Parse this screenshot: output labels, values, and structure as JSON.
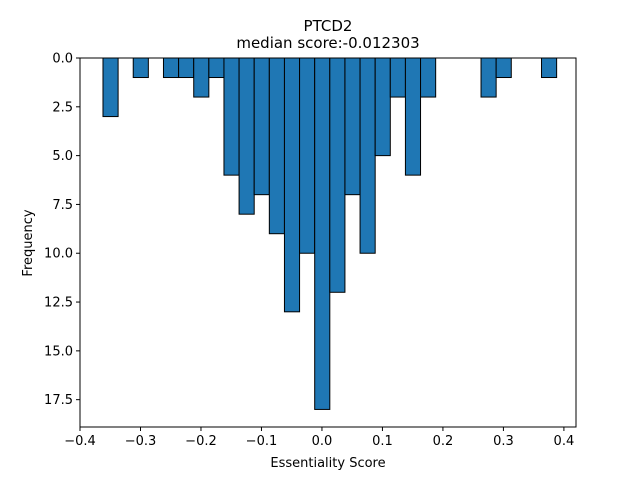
{
  "chart_data": {
    "type": "bar",
    "title": "PTCD2",
    "subtitle": "median score:-0.012303",
    "xlabel": "Essentiality Score",
    "ylabel": "Frequency",
    "y_inverted": true,
    "xlim": [
      -0.4,
      0.42
    ],
    "ylim": [
      0,
      18.9
    ],
    "bin_width": 0.025,
    "x_ticks": [
      -0.4,
      -0.3,
      -0.2,
      -0.1,
      0.0,
      0.1,
      0.2,
      0.3,
      0.4
    ],
    "x_tick_labels": [
      "−0.4",
      "−0.3",
      "−0.2",
      "−0.1",
      "0.0",
      "0.1",
      "0.2",
      "0.3",
      "0.4"
    ],
    "y_ticks": [
      0.0,
      2.5,
      5.0,
      7.5,
      10.0,
      12.5,
      15.0,
      17.5
    ],
    "y_tick_labels": [
      "0.0",
      "2.5",
      "5.0",
      "7.5",
      "10.0",
      "12.5",
      "15.0",
      "17.5"
    ],
    "bin_starts": [
      -0.362,
      -0.312,
      -0.262,
      -0.237,
      -0.212,
      -0.187,
      -0.162,
      -0.137,
      -0.112,
      -0.087,
      -0.062,
      -0.037,
      -0.012,
      0.013,
      0.038,
      0.063,
      0.088,
      0.113,
      0.138,
      0.163,
      0.263,
      0.288,
      0.363
    ],
    "values": [
      3,
      1,
      1,
      1,
      2,
      1,
      6,
      8,
      7,
      9,
      13,
      10,
      18,
      12,
      7,
      10,
      5,
      2,
      6,
      2,
      2,
      1,
      1
    ],
    "bar_color": "#1f77b4",
    "edge_color": "#000000",
    "grid": false,
    "legend": "none"
  }
}
